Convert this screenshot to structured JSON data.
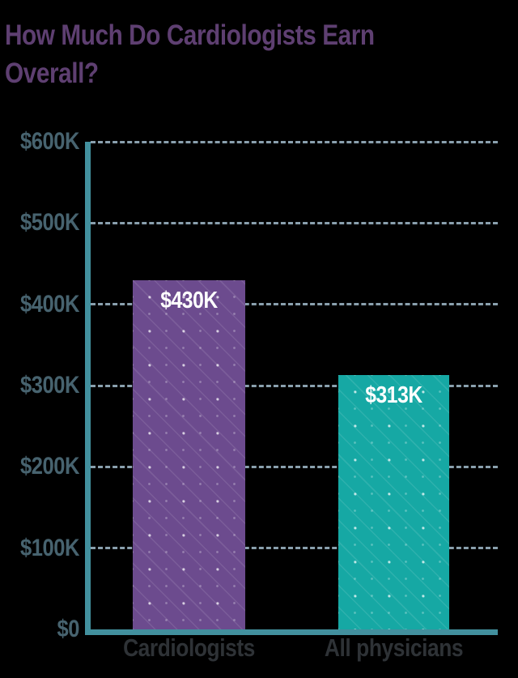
{
  "title_lines": [
    "How Much Do Cardiologists Earn",
    "Overall?"
  ],
  "colors": {
    "background": "#000000",
    "title": "#5e3f71",
    "axis": "#42909e",
    "grid_dash": "#8aa0ae",
    "tick_label": "#47636f",
    "category_label": "#2e3236",
    "bar_value_label": "#ffffff"
  },
  "chart_data": {
    "type": "bar",
    "title": "How Much Do Cardiologists Earn Overall?",
    "categories": [
      "Cardiologists",
      "All physicians"
    ],
    "values": [
      430000,
      313000
    ],
    "value_labels": [
      "$430K",
      "$313K"
    ],
    "bar_colors": [
      "#6c4b8e",
      "#16a8a4"
    ],
    "bar_pattern": "diagonal dotted lines",
    "xlabel": "",
    "ylabel": "",
    "ylim": [
      0,
      600000
    ],
    "y_ticks": [
      0,
      100000,
      200000,
      300000,
      400000,
      500000,
      600000
    ],
    "y_tick_labels": [
      "$0",
      "$100K",
      "$200K",
      "$300K",
      "$400K",
      "$500K",
      "$600K"
    ],
    "grid": "horizontal dashed",
    "legend": "none"
  }
}
